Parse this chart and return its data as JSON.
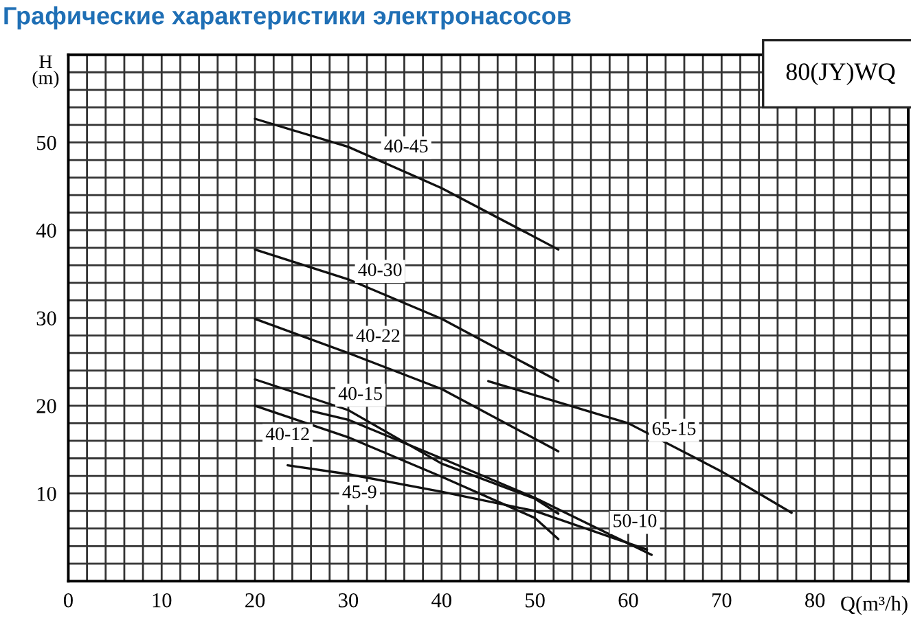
{
  "chart_data": {
    "type": "line",
    "title": "Графические характеристики электронасосов",
    "xlabel": "Q(m³/h)",
    "ylabel": "H\n(m)",
    "xlim": [
      0,
      90
    ],
    "ylim": [
      0,
      60
    ],
    "xticks": [
      0,
      {
        "value": 2,
        "label": null
      },
      {
        "value": 4,
        "label": null
      },
      {
        "value": 6,
        "label": null
      },
      {
        "value": 8,
        "label": null
      },
      10,
      {
        "value": 12,
        "label": null
      },
      {
        "value": 14,
        "label": null
      },
      {
        "value": 16,
        "label": null
      },
      {
        "value": 18,
        "label": null
      },
      20,
      {
        "value": 22,
        "label": null
      },
      {
        "value": 24,
        "label": null
      },
      {
        "value": 26,
        "label": null
      },
      {
        "value": 28,
        "label": null
      },
      30,
      {
        "value": 32,
        "label": null
      },
      {
        "value": 34,
        "label": null
      },
      {
        "value": 36,
        "label": null
      },
      {
        "value": 38,
        "label": null
      },
      40,
      {
        "value": 42,
        "label": null
      },
      {
        "value": 44,
        "label": null
      },
      {
        "value": 46,
        "label": null
      },
      {
        "value": 48,
        "label": null
      },
      50,
      {
        "value": 52,
        "label": null
      },
      {
        "value": 54,
        "label": null
      },
      {
        "value": 56,
        "label": null
      },
      {
        "value": 58,
        "label": null
      },
      60,
      {
        "value": 62,
        "label": null
      },
      {
        "value": 64,
        "label": null
      },
      {
        "value": 66,
        "label": null
      },
      {
        "value": 68,
        "label": null
      },
      70,
      {
        "value": 72,
        "label": null
      },
      {
        "value": 74,
        "label": null
      },
      {
        "value": 76,
        "label": null
      },
      {
        "value": 78,
        "label": null
      },
      80,
      {
        "value": 82,
        "label": null
      },
      {
        "value": 84,
        "label": null
      },
      {
        "value": 86,
        "label": null
      },
      {
        "value": 88,
        "label": null
      }
    ],
    "yticks": [
      {
        "value": 2,
        "label": null
      },
      {
        "value": 4,
        "label": null
      },
      {
        "value": 6,
        "label": null
      },
      {
        "value": 8,
        "label": null
      },
      10,
      {
        "value": 12,
        "label": null
      },
      {
        "value": 14,
        "label": null
      },
      {
        "value": 16,
        "label": null
      },
      {
        "value": 18,
        "label": null
      },
      20,
      {
        "value": 22,
        "label": null
      },
      {
        "value": 24,
        "label": null
      },
      {
        "value": 26,
        "label": null
      },
      {
        "value": 28,
        "label": null
      },
      30,
      {
        "value": 32,
        "label": null
      },
      {
        "value": 34,
        "label": null
      },
      {
        "value": 36,
        "label": null
      },
      {
        "value": 38,
        "label": null
      },
      40,
      {
        "value": 42,
        "label": null
      },
      {
        "value": 44,
        "label": null
      },
      {
        "value": 46,
        "label": null
      },
      {
        "value": 48,
        "label": null
      },
      50,
      {
        "value": 52,
        "label": null
      },
      {
        "value": 54,
        "label": null
      },
      {
        "value": 56,
        "label": null
      },
      {
        "value": 58,
        "label": null
      }
    ],
    "grid": true,
    "legend": false,
    "series": [
      {
        "color": "#111111",
        "x": [
          20,
          30,
          40,
          52.5
        ],
        "values": [
          52.7,
          49.5,
          44.8,
          37.8
        ]
      },
      {
        "color": "#111111",
        "x": [
          20,
          30,
          40,
          52.5
        ],
        "values": [
          37.8,
          34.4,
          29.9,
          22.8
        ]
      },
      {
        "color": "#111111",
        "x": [
          20,
          30,
          40,
          52.5
        ],
        "values": [
          29.9,
          26,
          21.9,
          14.8
        ]
      },
      {
        "color": "#111111",
        "x": [
          20,
          30,
          40,
          50,
          52.5
        ],
        "values": [
          23,
          19.5,
          13.4,
          9.4,
          7.7
        ]
      },
      {
        "color": "#111111",
        "x": [
          20,
          30,
          40,
          50,
          52.5
        ],
        "values": [
          20,
          16.4,
          11.9,
          7.2,
          4.8
        ]
      },
      {
        "color": "#111111",
        "x": [
          26,
          30,
          40,
          50,
          62.5
        ],
        "values": [
          19.4,
          18.4,
          14,
          9.5,
          3
        ]
      },
      {
        "color": "#111111",
        "x": [
          23.5,
          30,
          40,
          50,
          62
        ],
        "values": [
          13.2,
          12.2,
          10.2,
          8,
          3.6
        ]
      },
      {
        "color": "#111111",
        "x": [
          45,
          60,
          70,
          77.5
        ],
        "values": [
          22.8,
          18,
          12.5,
          7.8
        ]
      }
    ],
    "annotations": [
      {
        "text": "40-45",
        "x": 36.2,
        "y": 49.4
      },
      {
        "text": "40-30",
        "x": 33.4,
        "y": 35.3
      },
      {
        "text": "40-22",
        "x": 33.2,
        "y": 27.8
      },
      {
        "text": "40-15",
        "x": 31.3,
        "y": 21.2
      },
      {
        "text": "40-12",
        "x": 23.5,
        "y": 16.6
      },
      {
        "text": "45-9",
        "x": 31.2,
        "y": 10
      },
      {
        "text": "50-10",
        "x": 60.7,
        "y": 6.7
      },
      {
        "text": "65-15",
        "x": 64.9,
        "y": 17.2
      },
      "80(JY)WQ"
    ]
  }
}
